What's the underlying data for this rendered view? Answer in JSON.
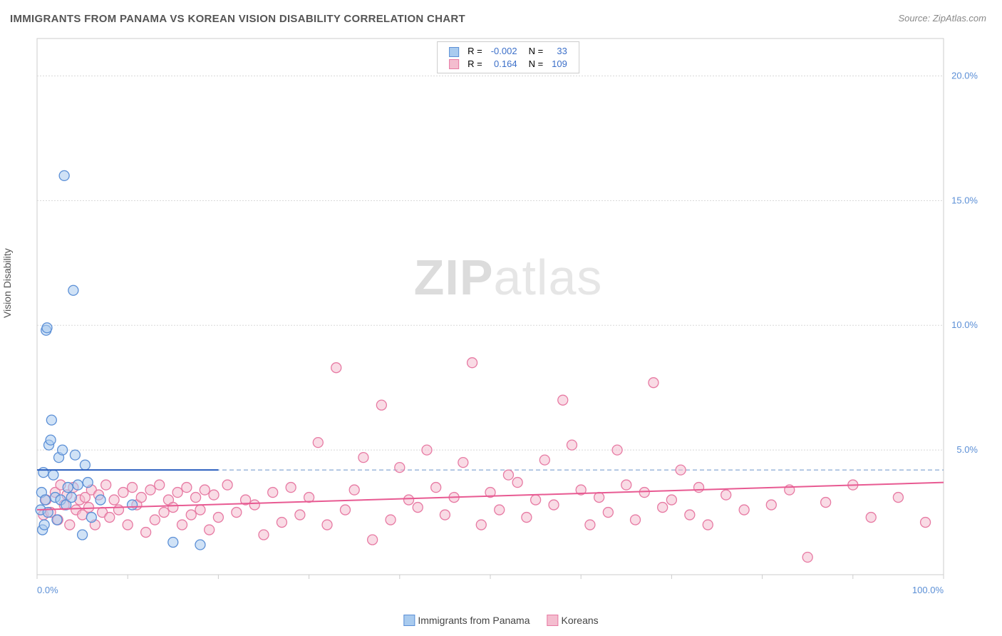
{
  "title": "IMMIGRANTS FROM PANAMA VS KOREAN VISION DISABILITY CORRELATION CHART",
  "source_label": "Source: ",
  "source_name": "ZipAtlas.com",
  "watermark_bold": "ZIP",
  "watermark_rest": "atlas",
  "ylabel": "Vision Disability",
  "chart": {
    "type": "scatter",
    "xlim": [
      0,
      100
    ],
    "ylim": [
      0,
      21.5
    ],
    "background_color": "#ffffff",
    "grid_color": "#d8d8d8",
    "axis_color": "#cccccc",
    "x_ticks": [
      0,
      10,
      20,
      30,
      40,
      50,
      60,
      70,
      80,
      90,
      100
    ],
    "x_tick_labels": {
      "0": "0.0%",
      "100": "100.0%"
    },
    "y_ticks": [
      5,
      10,
      15,
      20
    ],
    "y_tick_labels": {
      "5": "5.0%",
      "10": "10.0%",
      "15": "15.0%",
      "20": "20.0%"
    },
    "dashed_ref_y": 4.2,
    "dashed_ref_color": "#6a95c9",
    "series": [
      {
        "name": "Immigrants from Panama",
        "fill": "#a9cbef",
        "stroke": "#5b8fd6",
        "marker_radius": 7,
        "fill_opacity": 0.55,
        "R": "-0.002",
        "N": "33",
        "trend": {
          "x1": 0,
          "y1": 4.2,
          "x2": 20,
          "y2": 4.2,
          "color": "#2b5fbf",
          "width": 2
        },
        "points": [
          [
            0.4,
            2.6
          ],
          [
            0.5,
            3.3
          ],
          [
            0.6,
            1.8
          ],
          [
            0.7,
            4.1
          ],
          [
            0.8,
            2.0
          ],
          [
            0.9,
            3.0
          ],
          [
            1.0,
            9.8
          ],
          [
            1.1,
            9.9
          ],
          [
            1.2,
            2.5
          ],
          [
            1.3,
            5.2
          ],
          [
            1.5,
            5.4
          ],
          [
            1.6,
            6.2
          ],
          [
            1.8,
            4.0
          ],
          [
            2.0,
            3.1
          ],
          [
            2.2,
            2.2
          ],
          [
            2.4,
            4.7
          ],
          [
            2.6,
            3.0
          ],
          [
            2.8,
            5.0
          ],
          [
            3.0,
            16.0
          ],
          [
            3.2,
            2.8
          ],
          [
            3.4,
            3.5
          ],
          [
            3.8,
            3.1
          ],
          [
            4.0,
            11.4
          ],
          [
            4.2,
            4.8
          ],
          [
            4.5,
            3.6
          ],
          [
            5.0,
            1.6
          ],
          [
            5.3,
            4.4
          ],
          [
            5.6,
            3.7
          ],
          [
            6.0,
            2.3
          ],
          [
            7.0,
            3.0
          ],
          [
            10.5,
            2.8
          ],
          [
            15.0,
            1.3
          ],
          [
            18.0,
            1.2
          ]
        ]
      },
      {
        "name": "Koreans",
        "fill": "#f4bdcf",
        "stroke": "#e77aa3",
        "marker_radius": 7,
        "fill_opacity": 0.55,
        "R": "0.164",
        "N": "109",
        "trend": {
          "x1": 0,
          "y1": 2.6,
          "x2": 100,
          "y2": 3.7,
          "color": "#e85a92",
          "width": 2
        },
        "points": [
          [
            0.7,
            2.4
          ],
          [
            1.0,
            3.0
          ],
          [
            1.5,
            2.5
          ],
          [
            2.0,
            3.3
          ],
          [
            2.3,
            2.2
          ],
          [
            2.6,
            3.6
          ],
          [
            3.0,
            2.8
          ],
          [
            3.3,
            3.2
          ],
          [
            3.6,
            2.0
          ],
          [
            4.0,
            3.5
          ],
          [
            4.3,
            2.6
          ],
          [
            4.7,
            3.0
          ],
          [
            5.0,
            2.4
          ],
          [
            5.3,
            3.1
          ],
          [
            5.7,
            2.7
          ],
          [
            6.0,
            3.4
          ],
          [
            6.4,
            2.0
          ],
          [
            6.8,
            3.2
          ],
          [
            7.2,
            2.5
          ],
          [
            7.6,
            3.6
          ],
          [
            8.0,
            2.3
          ],
          [
            8.5,
            3.0
          ],
          [
            9.0,
            2.6
          ],
          [
            9.5,
            3.3
          ],
          [
            10.0,
            2.0
          ],
          [
            10.5,
            3.5
          ],
          [
            11.0,
            2.8
          ],
          [
            11.5,
            3.1
          ],
          [
            12.0,
            1.7
          ],
          [
            12.5,
            3.4
          ],
          [
            13.0,
            2.2
          ],
          [
            13.5,
            3.6
          ],
          [
            14.0,
            2.5
          ],
          [
            14.5,
            3.0
          ],
          [
            15.0,
            2.7
          ],
          [
            15.5,
            3.3
          ],
          [
            16.0,
            2.0
          ],
          [
            16.5,
            3.5
          ],
          [
            17.0,
            2.4
          ],
          [
            17.5,
            3.1
          ],
          [
            18.0,
            2.6
          ],
          [
            18.5,
            3.4
          ],
          [
            19.0,
            1.8
          ],
          [
            19.5,
            3.2
          ],
          [
            20.0,
            2.3
          ],
          [
            21.0,
            3.6
          ],
          [
            22.0,
            2.5
          ],
          [
            23.0,
            3.0
          ],
          [
            24.0,
            2.8
          ],
          [
            25.0,
            1.6
          ],
          [
            26.0,
            3.3
          ],
          [
            27.0,
            2.1
          ],
          [
            28.0,
            3.5
          ],
          [
            29.0,
            2.4
          ],
          [
            30.0,
            3.1
          ],
          [
            31.0,
            5.3
          ],
          [
            32.0,
            2.0
          ],
          [
            33.0,
            8.3
          ],
          [
            34.0,
            2.6
          ],
          [
            35.0,
            3.4
          ],
          [
            36.0,
            4.7
          ],
          [
            37.0,
            1.4
          ],
          [
            38.0,
            6.8
          ],
          [
            39.0,
            2.2
          ],
          [
            40.0,
            4.3
          ],
          [
            41.0,
            3.0
          ],
          [
            42.0,
            2.7
          ],
          [
            43.0,
            5.0
          ],
          [
            44.0,
            3.5
          ],
          [
            45.0,
            2.4
          ],
          [
            46.0,
            3.1
          ],
          [
            47.0,
            4.5
          ],
          [
            48.0,
            8.5
          ],
          [
            49.0,
            2.0
          ],
          [
            50.0,
            3.3
          ],
          [
            51.0,
            2.6
          ],
          [
            52.0,
            4.0
          ],
          [
            53.0,
            3.7
          ],
          [
            54.0,
            2.3
          ],
          [
            55.0,
            3.0
          ],
          [
            56.0,
            4.6
          ],
          [
            57.0,
            2.8
          ],
          [
            58.0,
            7.0
          ],
          [
            59.0,
            5.2
          ],
          [
            60.0,
            3.4
          ],
          [
            61.0,
            2.0
          ],
          [
            62.0,
            3.1
          ],
          [
            63.0,
            2.5
          ],
          [
            64.0,
            5.0
          ],
          [
            65.0,
            3.6
          ],
          [
            66.0,
            2.2
          ],
          [
            67.0,
            3.3
          ],
          [
            68.0,
            7.7
          ],
          [
            69.0,
            2.7
          ],
          [
            70.0,
            3.0
          ],
          [
            71.0,
            4.2
          ],
          [
            72.0,
            2.4
          ],
          [
            73.0,
            3.5
          ],
          [
            74.0,
            2.0
          ],
          [
            76.0,
            3.2
          ],
          [
            78.0,
            2.6
          ],
          [
            81.0,
            2.8
          ],
          [
            83.0,
            3.4
          ],
          [
            85.0,
            0.7
          ],
          [
            87.0,
            2.9
          ],
          [
            90.0,
            3.6
          ],
          [
            92.0,
            2.3
          ],
          [
            95.0,
            3.1
          ],
          [
            98.0,
            2.1
          ]
        ]
      }
    ]
  },
  "legend_top": {
    "R_label": "R =",
    "N_label": "N ="
  },
  "bottom_legend": true
}
